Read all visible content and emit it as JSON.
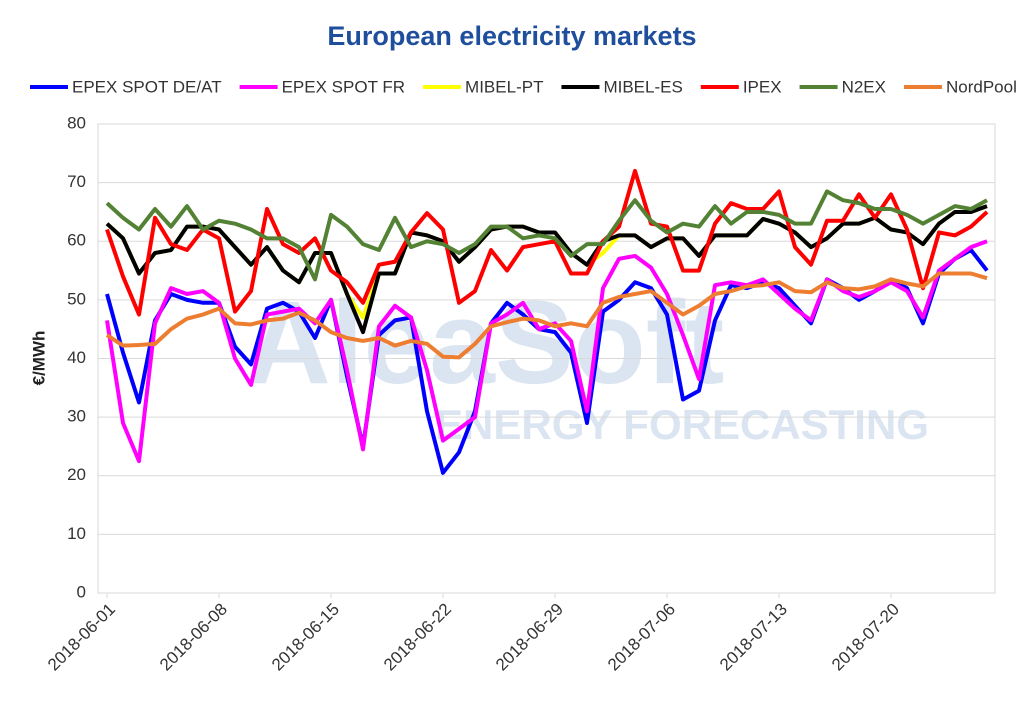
{
  "chart_data": {
    "type": "line",
    "title": "European electricity markets",
    "y_label": "€/MWh",
    "watermark": [
      "AleaSoft",
      "ENERGY FORECASTING"
    ],
    "x": [
      "2018-06-01",
      "2018-06-02",
      "2018-06-03",
      "2018-06-04",
      "2018-06-05",
      "2018-06-06",
      "2018-06-07",
      "2018-06-08",
      "2018-06-09",
      "2018-06-10",
      "2018-06-11",
      "2018-06-12",
      "2018-06-13",
      "2018-06-14",
      "2018-06-15",
      "2018-06-16",
      "2018-06-17",
      "2018-06-18",
      "2018-06-19",
      "2018-06-20",
      "2018-06-21",
      "2018-06-22",
      "2018-06-23",
      "2018-06-24",
      "2018-06-25",
      "2018-06-26",
      "2018-06-27",
      "2018-06-28",
      "2018-06-29",
      "2018-06-30",
      "2018-07-01",
      "2018-07-02",
      "2018-07-03",
      "2018-07-04",
      "2018-07-05",
      "2018-07-06",
      "2018-07-07",
      "2018-07-08",
      "2018-07-09",
      "2018-07-10",
      "2018-07-11",
      "2018-07-12",
      "2018-07-13",
      "2018-07-14",
      "2018-07-15",
      "2018-07-16",
      "2018-07-17",
      "2018-07-18",
      "2018-07-19",
      "2018-07-20",
      "2018-07-21",
      "2018-07-22",
      "2018-07-23",
      "2018-07-24",
      "2018-07-25",
      "2018-07-26"
    ],
    "xticks": [
      "2018-06-01",
      "2018-06-08",
      "2018-06-15",
      "2018-06-22",
      "2018-06-29",
      "2018-07-06",
      "2018-07-13",
      "2018-07-20"
    ],
    "ylim": [
      0,
      80
    ],
    "yticks": [
      0,
      10,
      20,
      30,
      40,
      50,
      60,
      70,
      80
    ],
    "grid": true,
    "series": [
      {
        "name": "EPEX SPOT DE/AT",
        "color": "#0000ff",
        "values": [
          51,
          41,
          32.5,
          46.5,
          51,
          50,
          49.5,
          49.5,
          42,
          39,
          48.5,
          49.5,
          48,
          43.5,
          50,
          37,
          25,
          44,
          46.5,
          47,
          31,
          20.5,
          24,
          31,
          46,
          49.5,
          47.5,
          45,
          44.5,
          41,
          29,
          48,
          50,
          53,
          52,
          47.5,
          33,
          34.5,
          46.5,
          52.5,
          52,
          53,
          52,
          49,
          46,
          53.5,
          52,
          50,
          51.5,
          53.5,
          52,
          46,
          54.5,
          57,
          58.5,
          55
        ]
      },
      {
        "name": "EPEX SPOT FR",
        "color": "#ff00ff",
        "values": [
          46.5,
          29,
          22.5,
          46,
          52,
          51,
          51.5,
          49.5,
          40,
          35.5,
          47.5,
          48,
          48.5,
          46,
          50,
          38,
          24.5,
          45.5,
          49,
          47,
          38,
          26,
          28,
          30,
          46,
          47.5,
          49.5,
          45,
          46,
          43,
          31,
          52,
          57,
          57.5,
          55.5,
          51,
          44,
          36.5,
          52.5,
          53,
          52.5,
          53.5,
          51,
          48.5,
          46.5,
          53.5,
          51.5,
          50.5,
          51.5,
          53,
          51.5,
          47,
          55,
          57,
          59,
          60
        ]
      },
      {
        "name": "MIBEL-PT",
        "color": "#ffff00",
        "values": [
          63,
          60.5,
          54.5,
          58,
          58.5,
          62.5,
          62.5,
          62,
          59,
          56,
          59,
          55,
          53,
          58,
          58,
          51,
          47,
          54.5,
          54.5,
          61.5,
          61,
          60,
          56.5,
          59,
          62,
          62.5,
          62.5,
          61.5,
          61.5,
          58,
          56,
          58,
          61,
          61,
          59,
          60.5,
          60.5,
          57.5,
          61,
          61,
          61,
          63.8,
          63,
          61.5,
          59,
          60.5,
          63,
          63,
          64,
          62,
          61.5,
          59.5,
          63,
          65,
          65,
          66
        ]
      },
      {
        "name": "MIBEL-ES",
        "color": "#000000",
        "values": [
          63,
          60.5,
          54.5,
          58,
          58.5,
          62.5,
          62.5,
          62,
          59,
          56,
          59,
          55,
          53,
          58,
          58,
          51,
          44.5,
          54.5,
          54.5,
          61.5,
          61,
          60,
          56.5,
          59,
          62,
          62.5,
          62.5,
          61.5,
          61.5,
          58,
          56,
          60,
          61,
          61,
          59,
          60.5,
          60.5,
          57.5,
          61,
          61,
          61,
          63.8,
          63,
          61.5,
          59,
          60.5,
          63,
          63,
          64,
          62,
          61.5,
          59.5,
          63,
          65,
          65,
          66
        ]
      },
      {
        "name": "IPEX",
        "color": "#ff0000",
        "values": [
          62,
          54,
          47.5,
          64,
          59.5,
          58.5,
          62,
          60.5,
          48,
          51.5,
          65.5,
          59.5,
          58,
          60.5,
          55,
          53,
          49.5,
          56,
          56.5,
          61.5,
          64.8,
          62,
          49.5,
          51.5,
          58.5,
          55,
          59,
          59.5,
          60,
          54.5,
          54.5,
          60,
          62.5,
          72,
          63,
          62.5,
          55,
          55,
          63,
          66.5,
          65.5,
          65.5,
          68.5,
          59,
          56,
          63.5,
          63.5,
          68,
          64,
          68,
          62,
          52,
          61.5,
          61,
          62.5,
          65
        ]
      },
      {
        "name": "N2EX",
        "color": "#548235",
        "values": [
          66.5,
          64,
          62,
          65.5,
          62.5,
          66,
          62,
          63.5,
          63,
          62,
          60.5,
          60.5,
          59,
          53.5,
          64.5,
          62.5,
          59.5,
          58.5,
          64,
          59,
          60,
          59.5,
          58,
          59.5,
          62.5,
          62.5,
          60.5,
          61,
          60.5,
          57.5,
          59.5,
          59.5,
          63.5,
          67,
          63.5,
          61.5,
          63,
          62.5,
          66,
          63,
          65,
          65,
          64.5,
          63,
          63,
          68.5,
          67,
          66.5,
          65.5,
          65.5,
          64.5,
          63,
          64.5,
          66,
          65.5,
          67
        ]
      },
      {
        "name": "NordPool",
        "color": "#ed7d31",
        "values": [
          44,
          42.2,
          42.3,
          42.5,
          45,
          46.8,
          47.5,
          48.5,
          46,
          45.8,
          46.5,
          46.8,
          47.8,
          46.5,
          44.5,
          43.5,
          43,
          43.5,
          42.2,
          43,
          42.5,
          40.3,
          40.2,
          42.5,
          45.5,
          46.2,
          46.8,
          46.5,
          45.5,
          46,
          45.5,
          49.5,
          50.5,
          51,
          51.5,
          49.5,
          47.5,
          49,
          51,
          51.5,
          52.3,
          52.5,
          53,
          51.5,
          51.3,
          53,
          52,
          51.8,
          52.3,
          53.5,
          52.8,
          52.3,
          54.5,
          54.5,
          54.5,
          53.7
        ]
      }
    ]
  }
}
